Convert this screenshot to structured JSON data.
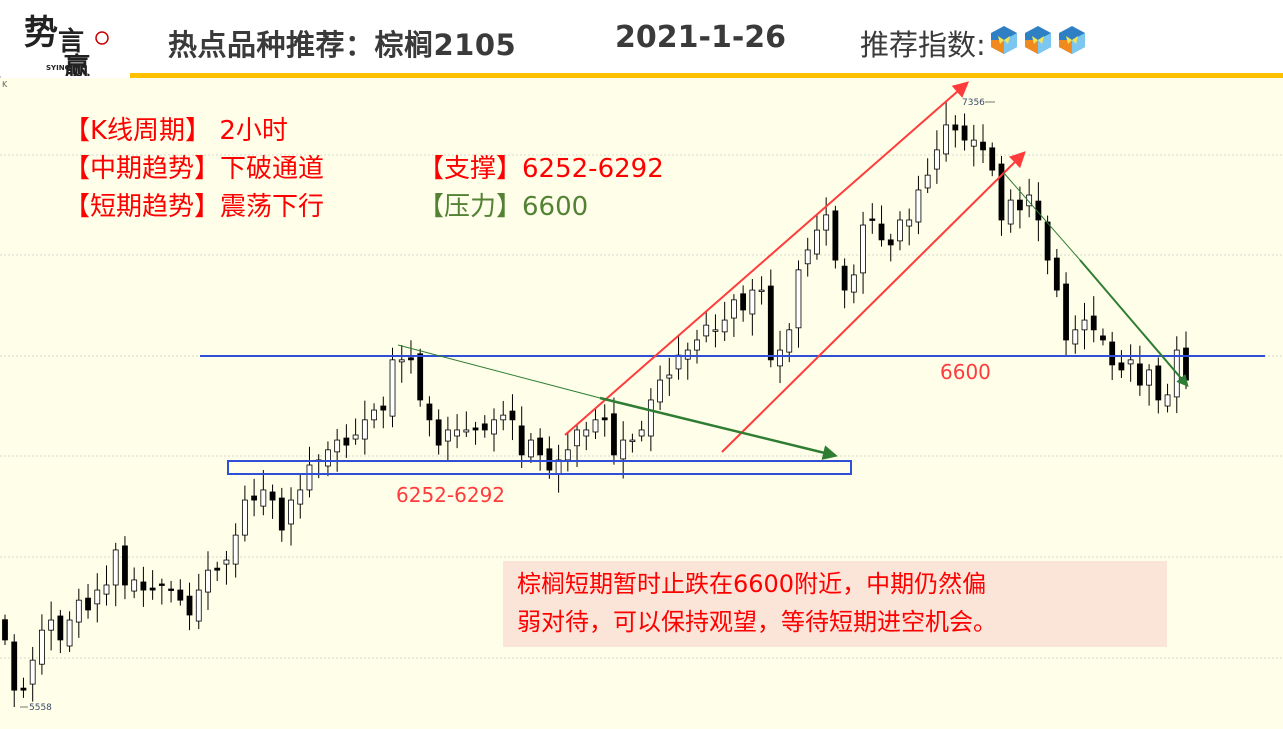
{
  "header": {
    "logo_text": "势赢 SYING",
    "title": "热点品种推荐：棕榈2105",
    "date": "2021-1-26",
    "recommend_label": "推荐指数:",
    "recommend_rating": 3,
    "accent_color": "#ffc000"
  },
  "chart_label": "K",
  "info": {
    "period_label": "【K线周期】",
    "period_value": "2小时",
    "mid_label": "【中期趋势】",
    "mid_value": "下破通道",
    "short_label": "【短期趋势】",
    "short_value": "震荡下行",
    "support_label": "【支撑】",
    "support_value": "6252-6292",
    "resistance_label": "【压力】",
    "resistance_value": "6600"
  },
  "levels": {
    "support_zone_label": "6252-6292",
    "resistance_label": "6600"
  },
  "note": {
    "line1": "棕榈短期暂时止跌在6600附近，中期仍然偏",
    "line2": "弱对待，可以保持观望，等待短期进空机会。"
  },
  "chart_data": {
    "type": "candlestick",
    "period": "2小时",
    "high_label": "7356",
    "low_label": "5558",
    "ylim": [
      5558,
      7356
    ],
    "grid": true,
    "up_color": "#ffffff",
    "down_color": "#000000",
    "resistance": 6600,
    "support_zone": [
      6252,
      6292
    ],
    "closes": [
      5757,
      5608,
      5608,
      5697,
      5786,
      5816,
      5757,
      5816,
      5875,
      5846,
      5905,
      5920,
      6024,
      5920,
      5935,
      5905,
      5905,
      5920,
      5905,
      5875,
      5831,
      5905,
      5964,
      5964,
      5994,
      6068,
      6172,
      6172,
      6202,
      6172,
      6083,
      6172,
      6202,
      6276,
      6291,
      6321,
      6350,
      6335,
      6365,
      6410,
      6439,
      6439,
      6588,
      6588,
      6588,
      6469,
      6410,
      6335,
      6380,
      6380,
      6380,
      6380,
      6380,
      6410,
      6424,
      6410,
      6306,
      6350,
      6306,
      6261,
      6291,
      6321,
      6380,
      6380,
      6410,
      6410,
      6306,
      6350,
      6350,
      6380,
      6469,
      6528,
      6543,
      6602,
      6617,
      6647,
      6691,
      6677,
      6706,
      6766,
      6736,
      6795,
      6795,
      6588,
      6617,
      6677,
      6855,
      6914,
      6973,
      7018,
      6884,
      6795,
      6840,
      6988,
      7003,
      6944,
      6929,
      7003,
      7003,
      7092,
      7136,
      7211,
      7285,
      7270,
      7240,
      7240,
      7211,
      7151,
      7003,
      7062,
      7033,
      7077,
      7003,
      6884,
      6795,
      6647,
      6677,
      6706,
      6677,
      6647,
      6573,
      6558,
      6588,
      6513,
      6558,
      6469,
      6484,
      6617,
      6528
    ],
    "trend_colors": {
      "channel": "#ff3b3b",
      "downtrend": "#2e7d32",
      "level": "#2f4fd6"
    }
  }
}
